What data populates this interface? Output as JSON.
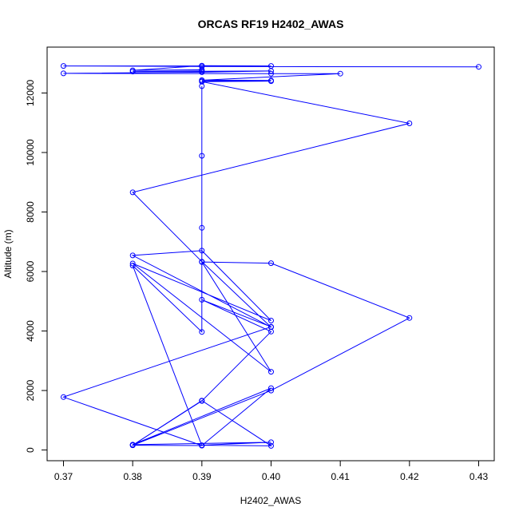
{
  "chart_data": {
    "type": "line",
    "title": "ORCAS RF19 H2402_AWAS",
    "xlabel": "H2402_AWAS",
    "ylabel": "Altitude (m)",
    "xlim": [
      0.37,
      0.43
    ],
    "ylim": [
      0,
      13000
    ],
    "xticks": [
      0.37,
      0.38,
      0.39,
      0.4,
      0.41,
      0.42,
      0.43
    ],
    "xtick_labels": [
      "0.37",
      "0.38",
      "0.39",
      "0.40",
      "0.41",
      "0.42",
      "0.43"
    ],
    "yticks": [
      0,
      2000,
      4000,
      6000,
      8000,
      10000,
      12000
    ],
    "ytick_labels": [
      "0",
      "2000",
      "4000",
      "6000",
      "8000",
      "10000",
      "12000"
    ],
    "grid": false,
    "color": "#0000ff",
    "series": [
      {
        "points": [
          [
            0.43,
            12880
          ],
          [
            0.39,
            12890
          ],
          [
            0.37,
            12910
          ],
          [
            0.4,
            12910
          ],
          [
            0.39,
            12920
          ],
          [
            0.38,
            12760
          ],
          [
            0.39,
            12780
          ],
          [
            0.39,
            12740
          ],
          [
            0.38,
            12720
          ],
          [
            0.4,
            12740
          ],
          [
            0.39,
            12700
          ],
          [
            0.37,
            12660
          ],
          [
            0.4,
            12650
          ],
          [
            0.41,
            12650
          ],
          [
            0.39,
            12430
          ],
          [
            0.4,
            12420
          ],
          [
            0.39,
            12400
          ],
          [
            0.4,
            12400
          ],
          [
            0.39,
            12380
          ],
          [
            0.42,
            10980
          ],
          [
            0.38,
            8660
          ],
          [
            0.39,
            6330
          ],
          [
            0.4,
            4130
          ],
          [
            0.38,
            6540
          ],
          [
            0.39,
            6700
          ],
          [
            0.4,
            4350
          ],
          [
            0.38,
            6270
          ],
          [
            0.4,
            2630
          ],
          [
            0.39,
            6320
          ],
          [
            0.4,
            6280
          ],
          [
            0.42,
            4440
          ],
          [
            0.4,
            2000
          ],
          [
            0.38,
            160
          ],
          [
            0.39,
            1660
          ],
          [
            0.4,
            140
          ],
          [
            0.39,
            160
          ],
          [
            0.4,
            260
          ],
          [
            0.38,
            180
          ],
          [
            0.4,
            2080
          ],
          [
            0.39,
            150
          ],
          [
            0.37,
            1780
          ],
          [
            0.4,
            4140
          ],
          [
            0.39,
            5050
          ],
          [
            0.4,
            3980
          ],
          [
            0.39,
            1650
          ],
          [
            0.38,
            160
          ],
          [
            0.39,
            150
          ],
          [
            0.38,
            6200
          ],
          [
            0.39,
            3970
          ],
          [
            0.39,
            7470
          ],
          [
            0.39,
            9890
          ],
          [
            0.39,
            12230
          ]
        ]
      }
    ]
  }
}
